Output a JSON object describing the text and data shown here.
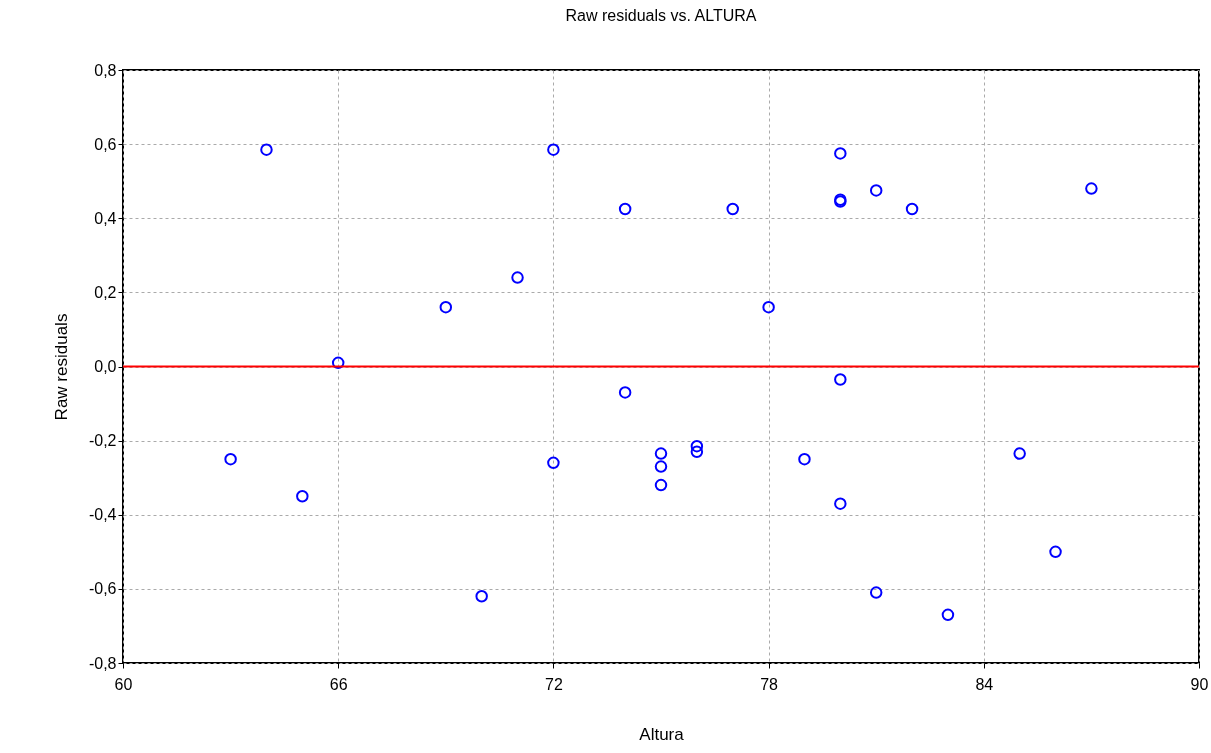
{
  "chart_data": {
    "type": "scatter",
    "title": "Raw residuals vs. ALTURA",
    "xlabel": "Altura",
    "ylabel": "Raw residuals",
    "x": [
      63,
      64,
      65,
      66,
      69,
      70,
      71,
      72,
      72,
      74,
      74,
      75,
      75,
      75,
      76,
      76,
      77,
      78,
      79,
      80,
      80,
      80,
      80,
      80,
      81,
      81,
      82,
      83,
      85,
      86,
      87
    ],
    "series": [
      {
        "color": "#0000ff",
        "values": [
          -0.25,
          0.585,
          -0.35,
          0.01,
          0.16,
          -0.62,
          0.24,
          0.585,
          -0.26,
          0.425,
          -0.07,
          -0.235,
          -0.27,
          -0.32,
          -0.215,
          -0.23,
          0.425,
          0.16,
          -0.25,
          0.575,
          0.45,
          0.445,
          -0.035,
          -0.37,
          0.475,
          -0.61,
          0.425,
          -0.67,
          -0.235,
          -0.5,
          0.48
        ]
      }
    ],
    "xlim": [
      60,
      90
    ],
    "xticks": [
      60,
      66,
      72,
      78,
      84,
      90
    ],
    "ylim": [
      -0.8,
      0.8
    ],
    "yticks": [
      {
        "value": -0.8,
        "label": "-0,8"
      },
      {
        "value": -0.6,
        "label": "-0,6"
      },
      {
        "value": -0.4,
        "label": "-0,4"
      },
      {
        "value": -0.2,
        "label": "-0,2"
      },
      {
        "value": 0,
        "label": "0,0"
      },
      {
        "value": 0.2,
        "label": "0,2"
      },
      {
        "value": 0.4,
        "label": "0,4"
      },
      {
        "value": 0.6,
        "label": "0,6"
      },
      {
        "value": 0.8,
        "label": "0,8"
      }
    ],
    "ref_lines": [
      {
        "axis": "y",
        "value": 0,
        "color": "#ff0000"
      }
    ],
    "grid": true,
    "marker": "circle"
  }
}
